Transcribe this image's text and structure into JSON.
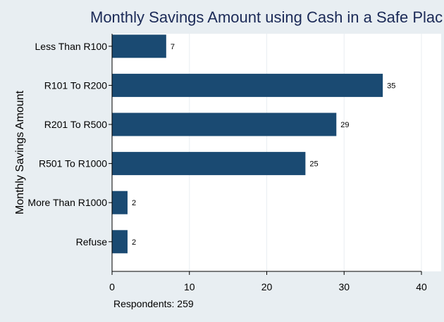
{
  "chart_data": {
    "type": "bar",
    "orientation": "horizontal",
    "title": "Monthly Savings Amount using Cash in a Safe Plac",
    "xlabel": "",
    "ylabel": "Monthly Savings Amount",
    "categories": [
      "Less Than R100",
      "R101 To R200",
      "R201 To R500",
      "R501 To R1000",
      "More Than R1000",
      "Refuse"
    ],
    "values": [
      7,
      35,
      29,
      25,
      2,
      2
    ],
    "data_labels": [
      "7",
      "35",
      "29",
      "25",
      "2",
      "2"
    ],
    "xlim": [
      0,
      40
    ],
    "xticks": [
      0,
      10,
      20,
      30,
      40
    ],
    "xtick_labels": [
      "0",
      "10",
      "20",
      "30",
      "40"
    ],
    "grid": true,
    "bar_color": "#1a4a72",
    "background_color": "#e8eef2",
    "note": "Respondents: 259"
  }
}
